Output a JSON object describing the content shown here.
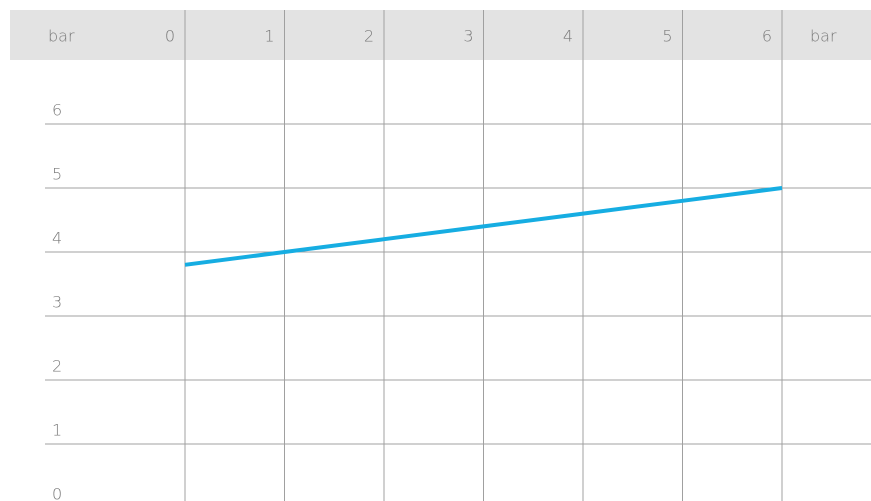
{
  "chart_data": {
    "type": "line",
    "axis_labels": [
      "bar",
      "bar"
    ],
    "x": [
      0,
      1,
      2,
      3,
      4,
      5,
      6
    ],
    "series": [
      {
        "color": "#16ade2",
        "values": [
          3.8,
          4.0,
          4.2,
          4.4,
          4.6,
          4.8,
          5.0
        ]
      }
    ],
    "xlim": [
      0,
      6
    ],
    "xticks": [
      0,
      1,
      2,
      3,
      4,
      5,
      6
    ],
    "ylim": [
      0,
      6
    ],
    "yticks": [
      0,
      1,
      2,
      3,
      4,
      5,
      6
    ],
    "grid": true
  }
}
